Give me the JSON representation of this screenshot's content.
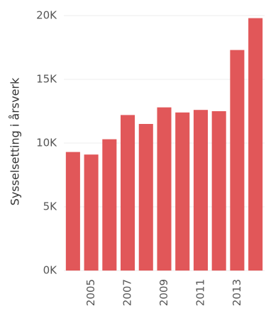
{
  "chart_data": {
    "type": "bar",
    "y_label": "Sysselsetting i årsverk",
    "categories": [
      null,
      "2005",
      null,
      "2007",
      null,
      "2009",
      null,
      "2011",
      null,
      "2013",
      null
    ],
    "values": [
      9300,
      9100,
      10300,
      12200,
      11500,
      12800,
      12400,
      12600,
      12500,
      17300,
      19800
    ],
    "color": "#e15759",
    "ylim": [
      0,
      20000
    ],
    "yticks": [
      {
        "value": 0,
        "label": "0K"
      },
      {
        "value": 5000,
        "label": "5K"
      },
      {
        "value": 10000,
        "label": "10K"
      },
      {
        "value": 15000,
        "label": "15K"
      },
      {
        "value": 20000,
        "label": "20K"
      }
    ],
    "grid": true
  }
}
